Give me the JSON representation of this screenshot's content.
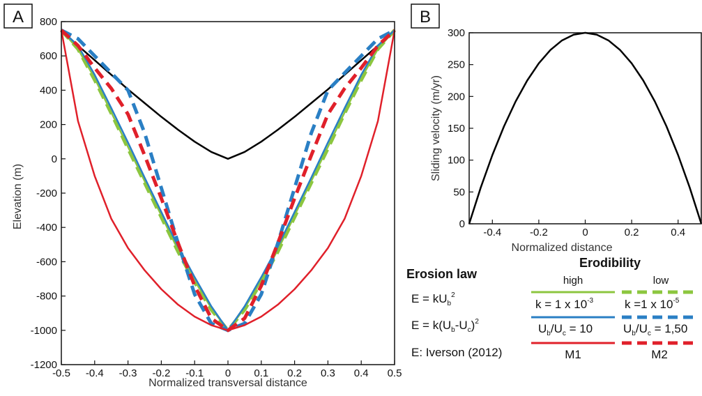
{
  "panel_a": {
    "letter": "A",
    "x_ticks": [
      "-0.5",
      "-0.4",
      "-0.3",
      "-0.2",
      "-0.1",
      "0",
      "0.1",
      "0.2",
      "0.3",
      "0.4",
      "0.5"
    ],
    "y_ticks": [
      "800",
      "600",
      "400",
      "200",
      "0",
      "-200",
      "-400",
      "-600",
      "-800",
      "-1000",
      "-1200"
    ]
  },
  "panel_b": {
    "letter": "B",
    "x_ticks": [
      "-0.4",
      "-0.2",
      "0",
      "0.2",
      "0.4"
    ],
    "y_ticks": [
      "300",
      "250",
      "200",
      "150",
      "100",
      "50",
      "0"
    ]
  },
  "legend": {
    "erosion_law_title": "Erosion law",
    "erodibility_title": "Erodibility",
    "high": "high",
    "low": "low",
    "law1": "E = kU",
    "law1_sub": "b",
    "law1_sup": "2",
    "law2_a": "E = k(U",
    "law2_sub": "b",
    "law2_b": "-U",
    "law2_sub2": "c",
    "law2_c": ")",
    "law2_sup": "2",
    "law3": "E: Iverson (2012)",
    "k_high": "k = 1 x 10",
    "k_high_exp": "-3",
    "k_low": "k =1 x 10",
    "k_low_exp": "-5",
    "ub_high_a": "U",
    "ub_high_sub": "b",
    "ub_high_b": "/U",
    "ub_high_sub2": "c",
    "ub_high_c": " = 10",
    "ub_low_a": "U",
    "ub_low_sub": "b",
    "ub_low_b": "/U",
    "ub_low_sub2": "c",
    "ub_low_c": " = 1,50",
    "m1": "M1",
    "m2": "M2"
  },
  "colors": {
    "green": "#8cc63f",
    "blue": "#2a7fc4",
    "red": "#e0202a",
    "black": "#000000"
  },
  "chart_data": [
    {
      "panel": "A",
      "type": "line",
      "title": "",
      "xlabel": "Normalized transversal distance",
      "ylabel": "Elevation (m)",
      "xlim": [
        -0.5,
        0.5
      ],
      "ylim": [
        -1200,
        800
      ],
      "x": [
        -0.5,
        -0.45,
        -0.4,
        -0.35,
        -0.3,
        -0.25,
        -0.2,
        -0.15,
        -0.1,
        -0.05,
        0,
        0.05,
        0.1,
        0.15,
        0.2,
        0.25,
        0.3,
        0.35,
        0.4,
        0.45,
        0.5
      ],
      "series": [
        {
          "color": "black",
          "style": "solid",
          "y": [
            750,
            660,
            575,
            490,
            405,
            325,
            245,
            170,
            100,
            40,
            0,
            40,
            100,
            170,
            245,
            325,
            405,
            490,
            575,
            660,
            750
          ]
        },
        {
          "color": "green",
          "style": "solid",
          "y": [
            750,
            640,
            470,
            270,
            70,
            -130,
            -330,
            -530,
            -710,
            -870,
            -1000,
            -870,
            -710,
            -530,
            -330,
            -130,
            70,
            270,
            470,
            640,
            750
          ]
        },
        {
          "color": "green",
          "style": "dashed",
          "y": [
            750,
            640,
            460,
            265,
            60,
            -140,
            -340,
            -540,
            -720,
            -880,
            -1000,
            -880,
            -720,
            -540,
            -340,
            -140,
            60,
            265,
            460,
            640,
            750
          ]
        },
        {
          "color": "blue",
          "style": "solid",
          "y": [
            750,
            660,
            490,
            295,
            95,
            -110,
            -310,
            -510,
            -690,
            -860,
            -1000,
            -860,
            -690,
            -510,
            -310,
            -110,
            95,
            295,
            490,
            660,
            750
          ]
        },
        {
          "color": "blue",
          "style": "dashed",
          "y": [
            750,
            700,
            600,
            500,
            400,
            150,
            -170,
            -490,
            -790,
            -960,
            -1000,
            -960,
            -790,
            -490,
            -170,
            150,
            400,
            500,
            600,
            700,
            750
          ]
        },
        {
          "color": "red",
          "style": "solid",
          "y": [
            750,
            220,
            -100,
            -350,
            -520,
            -650,
            -760,
            -850,
            -920,
            -970,
            -1000,
            -970,
            -920,
            -850,
            -760,
            -650,
            -520,
            -350,
            -100,
            220,
            750
          ]
        },
        {
          "color": "red",
          "style": "dashed",
          "y": [
            750,
            660,
            530,
            410,
            260,
            20,
            -230,
            -490,
            -740,
            -930,
            -1000,
            -930,
            -740,
            -490,
            -230,
            20,
            260,
            410,
            530,
            660,
            750
          ]
        }
      ]
    },
    {
      "panel": "B",
      "type": "line",
      "title": "",
      "xlabel": "Normalized distance",
      "ylabel": "Sliding velocity (m/yr)",
      "xlim": [
        -0.5,
        0.5
      ],
      "ylim": [
        0,
        300
      ],
      "x": [
        -0.5,
        -0.45,
        -0.4,
        -0.35,
        -0.3,
        -0.25,
        -0.2,
        -0.15,
        -0.1,
        -0.05,
        0,
        0.05,
        0.1,
        0.15,
        0.2,
        0.25,
        0.3,
        0.35,
        0.4,
        0.45,
        0.5
      ],
      "series": [
        {
          "color": "black",
          "style": "solid",
          "y": [
            0,
            57,
            108,
            153,
            192,
            225,
            252,
            273,
            288,
            297,
            300,
            297,
            288,
            273,
            252,
            225,
            192,
            153,
            108,
            57,
            0
          ]
        }
      ]
    }
  ]
}
